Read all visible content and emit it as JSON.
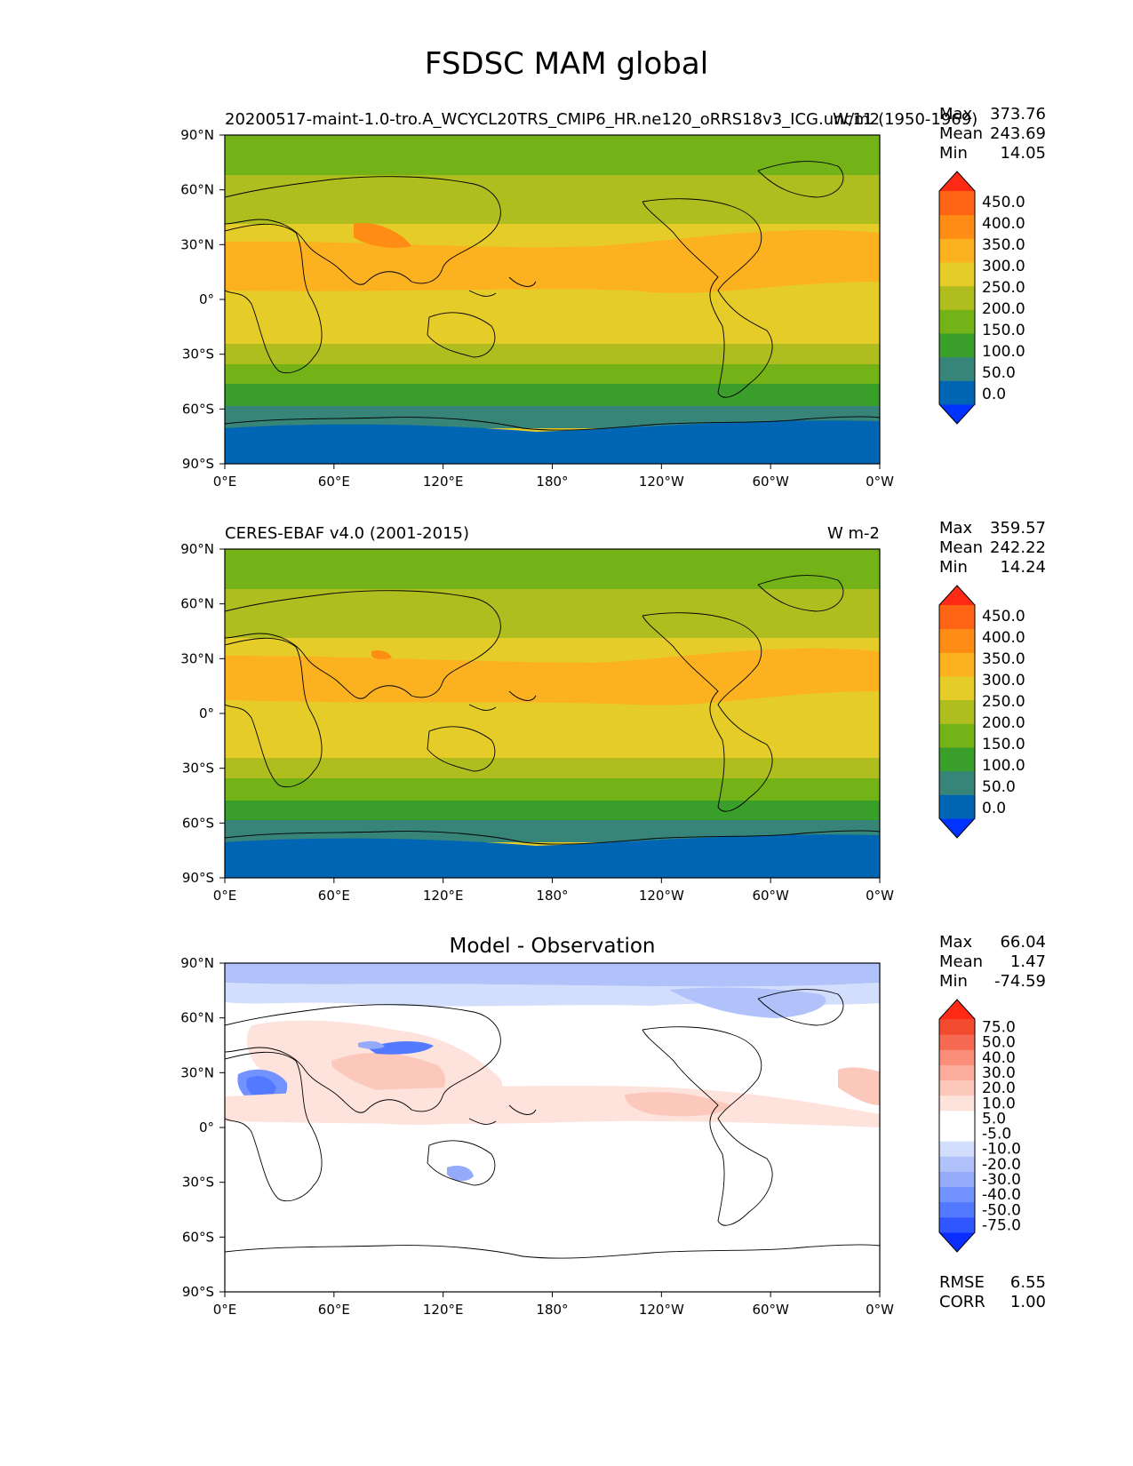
{
  "figure_title": "FSDSC MAM global",
  "colors": {
    "top": [
      "#0033ff",
      "#0066b3",
      "#368578",
      "#3a9e2a",
      "#73b318",
      "#afbd1e",
      "#e6cc28",
      "#fcb120",
      "#ff8c14",
      "#ff6414",
      "#ff2a14"
    ],
    "diff": [
      "#0a2eff",
      "#2f56ff",
      "#5279ff",
      "#7292ff",
      "#94abfb",
      "#b1c2fb",
      "#d3ddfc",
      "#ffffff",
      "#ffffff",
      "#fee2dc",
      "#fdc8bc",
      "#fcac9d",
      "#fb8e7b",
      "#f66a54",
      "#f14a2f",
      "#ff2a14"
    ]
  },
  "chart_data": [
    {
      "type": "heatmap",
      "title_left": "20200517-maint-1.0-tro.A_WCYCL20TRS_CMIP6_HR.ne120_oRRS18v3_ICG.unc11 (1950-1969)",
      "title_right": "W/m2",
      "stats": [
        {
          "label": "Max",
          "value": "373.76"
        },
        {
          "label": "Mean",
          "value": "243.69"
        },
        {
          "label": "Min",
          "value": "14.05"
        }
      ],
      "yticks": [
        "90°N",
        "60°N",
        "30°N",
        "0°",
        "30°S",
        "60°S",
        "90°S"
      ],
      "xticks": [
        "0°E",
        "60°E",
        "120°E",
        "180°",
        "120°W",
        "60°W",
        "0°W"
      ],
      "colorbar_levels": [
        "450.0",
        "400.0",
        "350.0",
        "300.0",
        "250.0",
        "200.0",
        "150.0",
        "100.0",
        "50.0",
        "0.0"
      ],
      "xlim": [
        0,
        360
      ],
      "ylim": [
        -90,
        90
      ]
    },
    {
      "type": "heatmap",
      "title_left": "CERES-EBAF v4.0 (2001-2015)",
      "title_right": "W m-2",
      "stats": [
        {
          "label": "Max",
          "value": "359.57"
        },
        {
          "label": "Mean",
          "value": "242.22"
        },
        {
          "label": "Min",
          "value": "14.24"
        }
      ],
      "yticks": [
        "90°N",
        "60°N",
        "30°N",
        "0°",
        "30°S",
        "60°S",
        "90°S"
      ],
      "xticks": [
        "0°E",
        "60°E",
        "120°E",
        "180°",
        "120°W",
        "60°W",
        "0°W"
      ],
      "colorbar_levels": [
        "450.0",
        "400.0",
        "350.0",
        "300.0",
        "250.0",
        "200.0",
        "150.0",
        "100.0",
        "50.0",
        "0.0"
      ],
      "xlim": [
        0,
        360
      ],
      "ylim": [
        -90,
        90
      ]
    },
    {
      "type": "heatmap",
      "title_center": "Model - Observation",
      "stats": [
        {
          "label": "Max",
          "value": "66.04"
        },
        {
          "label": "Mean",
          "value": "1.47"
        },
        {
          "label": "Min",
          "value": "-74.59"
        }
      ],
      "extra_stats": [
        {
          "label": "RMSE",
          "value": "6.55"
        },
        {
          "label": "CORR",
          "value": "1.00"
        }
      ],
      "yticks": [
        "90°N",
        "60°N",
        "30°N",
        "0°",
        "30°S",
        "60°S",
        "90°S"
      ],
      "xticks": [
        "0°E",
        "60°E",
        "120°E",
        "180°",
        "120°W",
        "60°W",
        "0°W"
      ],
      "colorbar_levels": [
        "75.0",
        "50.0",
        "40.0",
        "30.0",
        "20.0",
        "10.0",
        "5.0",
        "-5.0",
        "-10.0",
        "-20.0",
        "-30.0",
        "-40.0",
        "-50.0",
        "-75.0"
      ],
      "xlim": [
        0,
        360
      ],
      "ylim": [
        -90,
        90
      ]
    }
  ]
}
